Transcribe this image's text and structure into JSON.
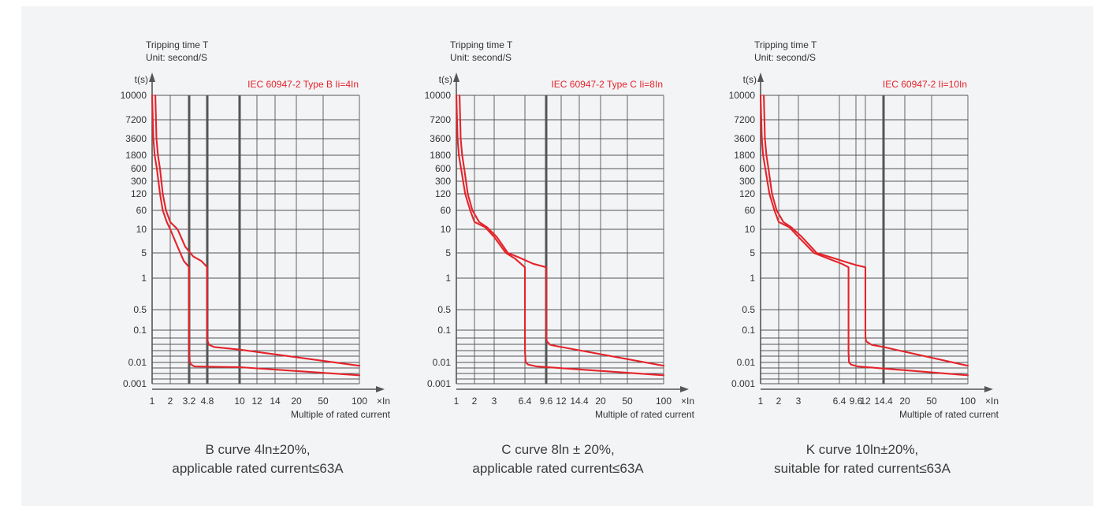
{
  "colors": {
    "background": "#f3f4f6",
    "grid": "#555555",
    "axis": "#555555",
    "curve": "#e4242b",
    "text": "#333333",
    "caption": "#3c3c3c"
  },
  "chart_data": [
    {
      "type": "line",
      "title": "IEC 60947-2   Type B Ii=4In",
      "ylabel_line1": "Tripping time T",
      "ylabel_line2": "Unit: second/S",
      "y_unit": "t(s)",
      "x_unit": "×In",
      "xlabel": "Multiple of rated current",
      "yticks": [
        "10000",
        "7200",
        "3600",
        "1800",
        "600",
        "300",
        "120",
        "60",
        "10",
        "5",
        "1",
        "0.5",
        "0.1",
        "0.01",
        "0.001"
      ],
      "xticks": [
        "1",
        "2",
        "3.2",
        "4.8",
        "10",
        "12",
        "14",
        "20",
        "50",
        "100"
      ],
      "heavy_xticks": [
        "3.2",
        "4.8",
        "10"
      ],
      "series": [
        {
          "x": [
            1.0,
            1.05,
            1.1,
            1.2,
            1.35,
            1.5,
            1.75,
            2.0,
            2.4,
            2.8,
            3.2,
            3.2,
            3.21,
            3.25,
            3.35,
            3.6,
            10,
            100
          ],
          "y": [
            "10000",
            "3600",
            "1800",
            "600",
            "120",
            "60",
            "20",
            "10",
            "6",
            "3",
            "2",
            "0.1",
            "0.02",
            "0.01",
            "0.008",
            "0.0065",
            "0.006",
            "0.0025"
          ]
        },
        {
          "x": [
            1.13,
            1.18,
            1.25,
            1.35,
            1.5,
            1.7,
            2.0,
            2.4,
            2.9,
            3.5,
            4.2,
            4.8,
            4.8,
            4.81,
            4.85,
            5.0,
            5.6,
            10,
            100
          ],
          "y": [
            "10000",
            "3600",
            "1800",
            "600",
            "120",
            "60",
            "20",
            "10",
            "6",
            "4",
            "3",
            "2",
            "0.1",
            "0.06",
            "0.045",
            "0.035",
            "0.03",
            "0.025",
            "0.007"
          ]
        }
      ]
    },
    {
      "type": "line",
      "title": "IEC 60947-2   Type C Ii=8In",
      "ylabel_line1": "Tripping time T",
      "ylabel_line2": "Unit: second/S",
      "y_unit": "t(s)",
      "x_unit": "×In",
      "xlabel": "Multiple of rated current",
      "yticks": [
        "10000",
        "7200",
        "3600",
        "1800",
        "600",
        "300",
        "120",
        "60",
        "10",
        "5",
        "1",
        "0.5",
        "0.1",
        "0.01",
        "0.001"
      ],
      "xticks": [
        "1",
        "2",
        "3",
        "6.4",
        "9.6",
        "12",
        "14.4",
        "20",
        "50",
        "100"
      ],
      "heavy_xticks": [
        "9.6"
      ],
      "series": [
        {
          "x": [
            1.0,
            1.05,
            1.1,
            1.2,
            1.4,
            1.7,
            2.0,
            2.5,
            3.0,
            4.0,
            5.0,
            6.4,
            6.4,
            6.41,
            6.5,
            6.8,
            8.0,
            100
          ],
          "y": [
            "10000",
            "3600",
            "1800",
            "600",
            "120",
            "60",
            "20",
            "12",
            "8",
            "5",
            "3.5",
            "2",
            "0.1",
            "0.02",
            "0.01",
            "0.008",
            "0.0065",
            "0.0025"
          ]
        },
        {
          "x": [
            1.13,
            1.18,
            1.25,
            1.35,
            1.55,
            1.85,
            2.2,
            2.6,
            3.2,
            4.2,
            5.6,
            7.5,
            9.6,
            9.6,
            9.61,
            9.7,
            10.2,
            12.0,
            100
          ],
          "y": [
            "10000",
            "3600",
            "1800",
            "600",
            "120",
            "60",
            "20",
            "12",
            "8",
            "5",
            "3.7",
            "2.5",
            "2",
            "0.1",
            "0.06",
            "0.045",
            "0.035",
            "0.03",
            "0.007"
          ]
        }
      ]
    },
    {
      "type": "line",
      "title": "IEC 60947-2    Ii=10In",
      "ylabel_line1": "Tripping time T",
      "ylabel_line2": "Unit: second/S",
      "y_unit": "t(s)",
      "x_unit": "×In",
      "xlabel": "Multiple of rated current",
      "yticks": [
        "10000",
        "7200",
        "3600",
        "1800",
        "600",
        "300",
        "120",
        "60",
        "10",
        "5",
        "1",
        "0.5",
        "0.1",
        "0.01",
        "0.001"
      ],
      "xticks": [
        "1",
        "2",
        "3",
        "6.4",
        "9.6",
        "12",
        "14.4",
        "20",
        "50",
        "100"
      ],
      "heavy_xticks": [
        "14.4"
      ],
      "series": [
        {
          "x": [
            1.0,
            1.05,
            1.1,
            1.2,
            1.4,
            1.7,
            2.0,
            2.5,
            3.0,
            4.0,
            5.2,
            6.8,
            8.0,
            8.0,
            8.01,
            8.1,
            8.5,
            10.0,
            100
          ],
          "y": [
            "10000",
            "3600",
            "1800",
            "600",
            "120",
            "60",
            "20",
            "12",
            "8",
            "5",
            "3.5",
            "2.5",
            "2",
            "0.1",
            "0.02",
            "0.01",
            "0.008",
            "0.0065",
            "0.0025"
          ]
        },
        {
          "x": [
            1.13,
            1.18,
            1.25,
            1.35,
            1.55,
            1.85,
            2.2,
            2.6,
            3.2,
            4.2,
            5.6,
            7.5,
            9.6,
            12.0,
            12.0,
            12.01,
            12.1,
            12.8,
            14.4,
            100
          ],
          "y": [
            "10000",
            "3600",
            "1800",
            "600",
            "120",
            "60",
            "20",
            "12",
            "8",
            "5",
            "3.7",
            "2.8",
            "2.3",
            "2",
            "0.1",
            "0.06",
            "0.045",
            "0.035",
            "0.03",
            "0.007"
          ]
        }
      ]
    }
  ],
  "captions": [
    {
      "line1": "B curve 4ln±20%,",
      "line2": "applicable rated current≤63A"
    },
    {
      "line1": "C curve 8ln ± 20%,",
      "line2": "applicable rated current≤63A"
    },
    {
      "line1": "K curve 10ln±20%,",
      "line2": "suitable for rated current≤63A"
    }
  ]
}
